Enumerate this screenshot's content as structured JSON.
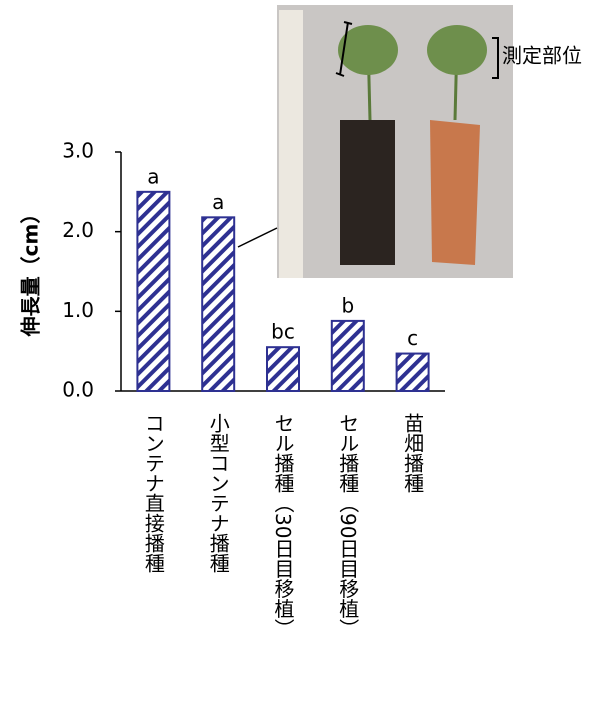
{
  "chart_data": {
    "type": "bar",
    "y_label": "伸長量（cm）",
    "categories": [
      "コンテナ直接播種",
      "小型コンテナ播種",
      "セル播種（30日目移植）",
      "セル播種（90日目移植）",
      "苗畑播種"
    ],
    "values": [
      2.5,
      2.18,
      0.55,
      0.88,
      0.47
    ],
    "letters": [
      "a",
      "a",
      "bc",
      "b",
      "c"
    ],
    "color": "#2e3192",
    "ylim": [
      0,
      3
    ],
    "yticks": [
      {
        "value": 0,
        "label": "0.0"
      },
      {
        "value": 1,
        "label": "1.0"
      },
      {
        "value": 2,
        "label": "2.0"
      },
      {
        "value": 3,
        "label": "3.0"
      }
    ],
    "photo_annotation": "測定部位"
  }
}
